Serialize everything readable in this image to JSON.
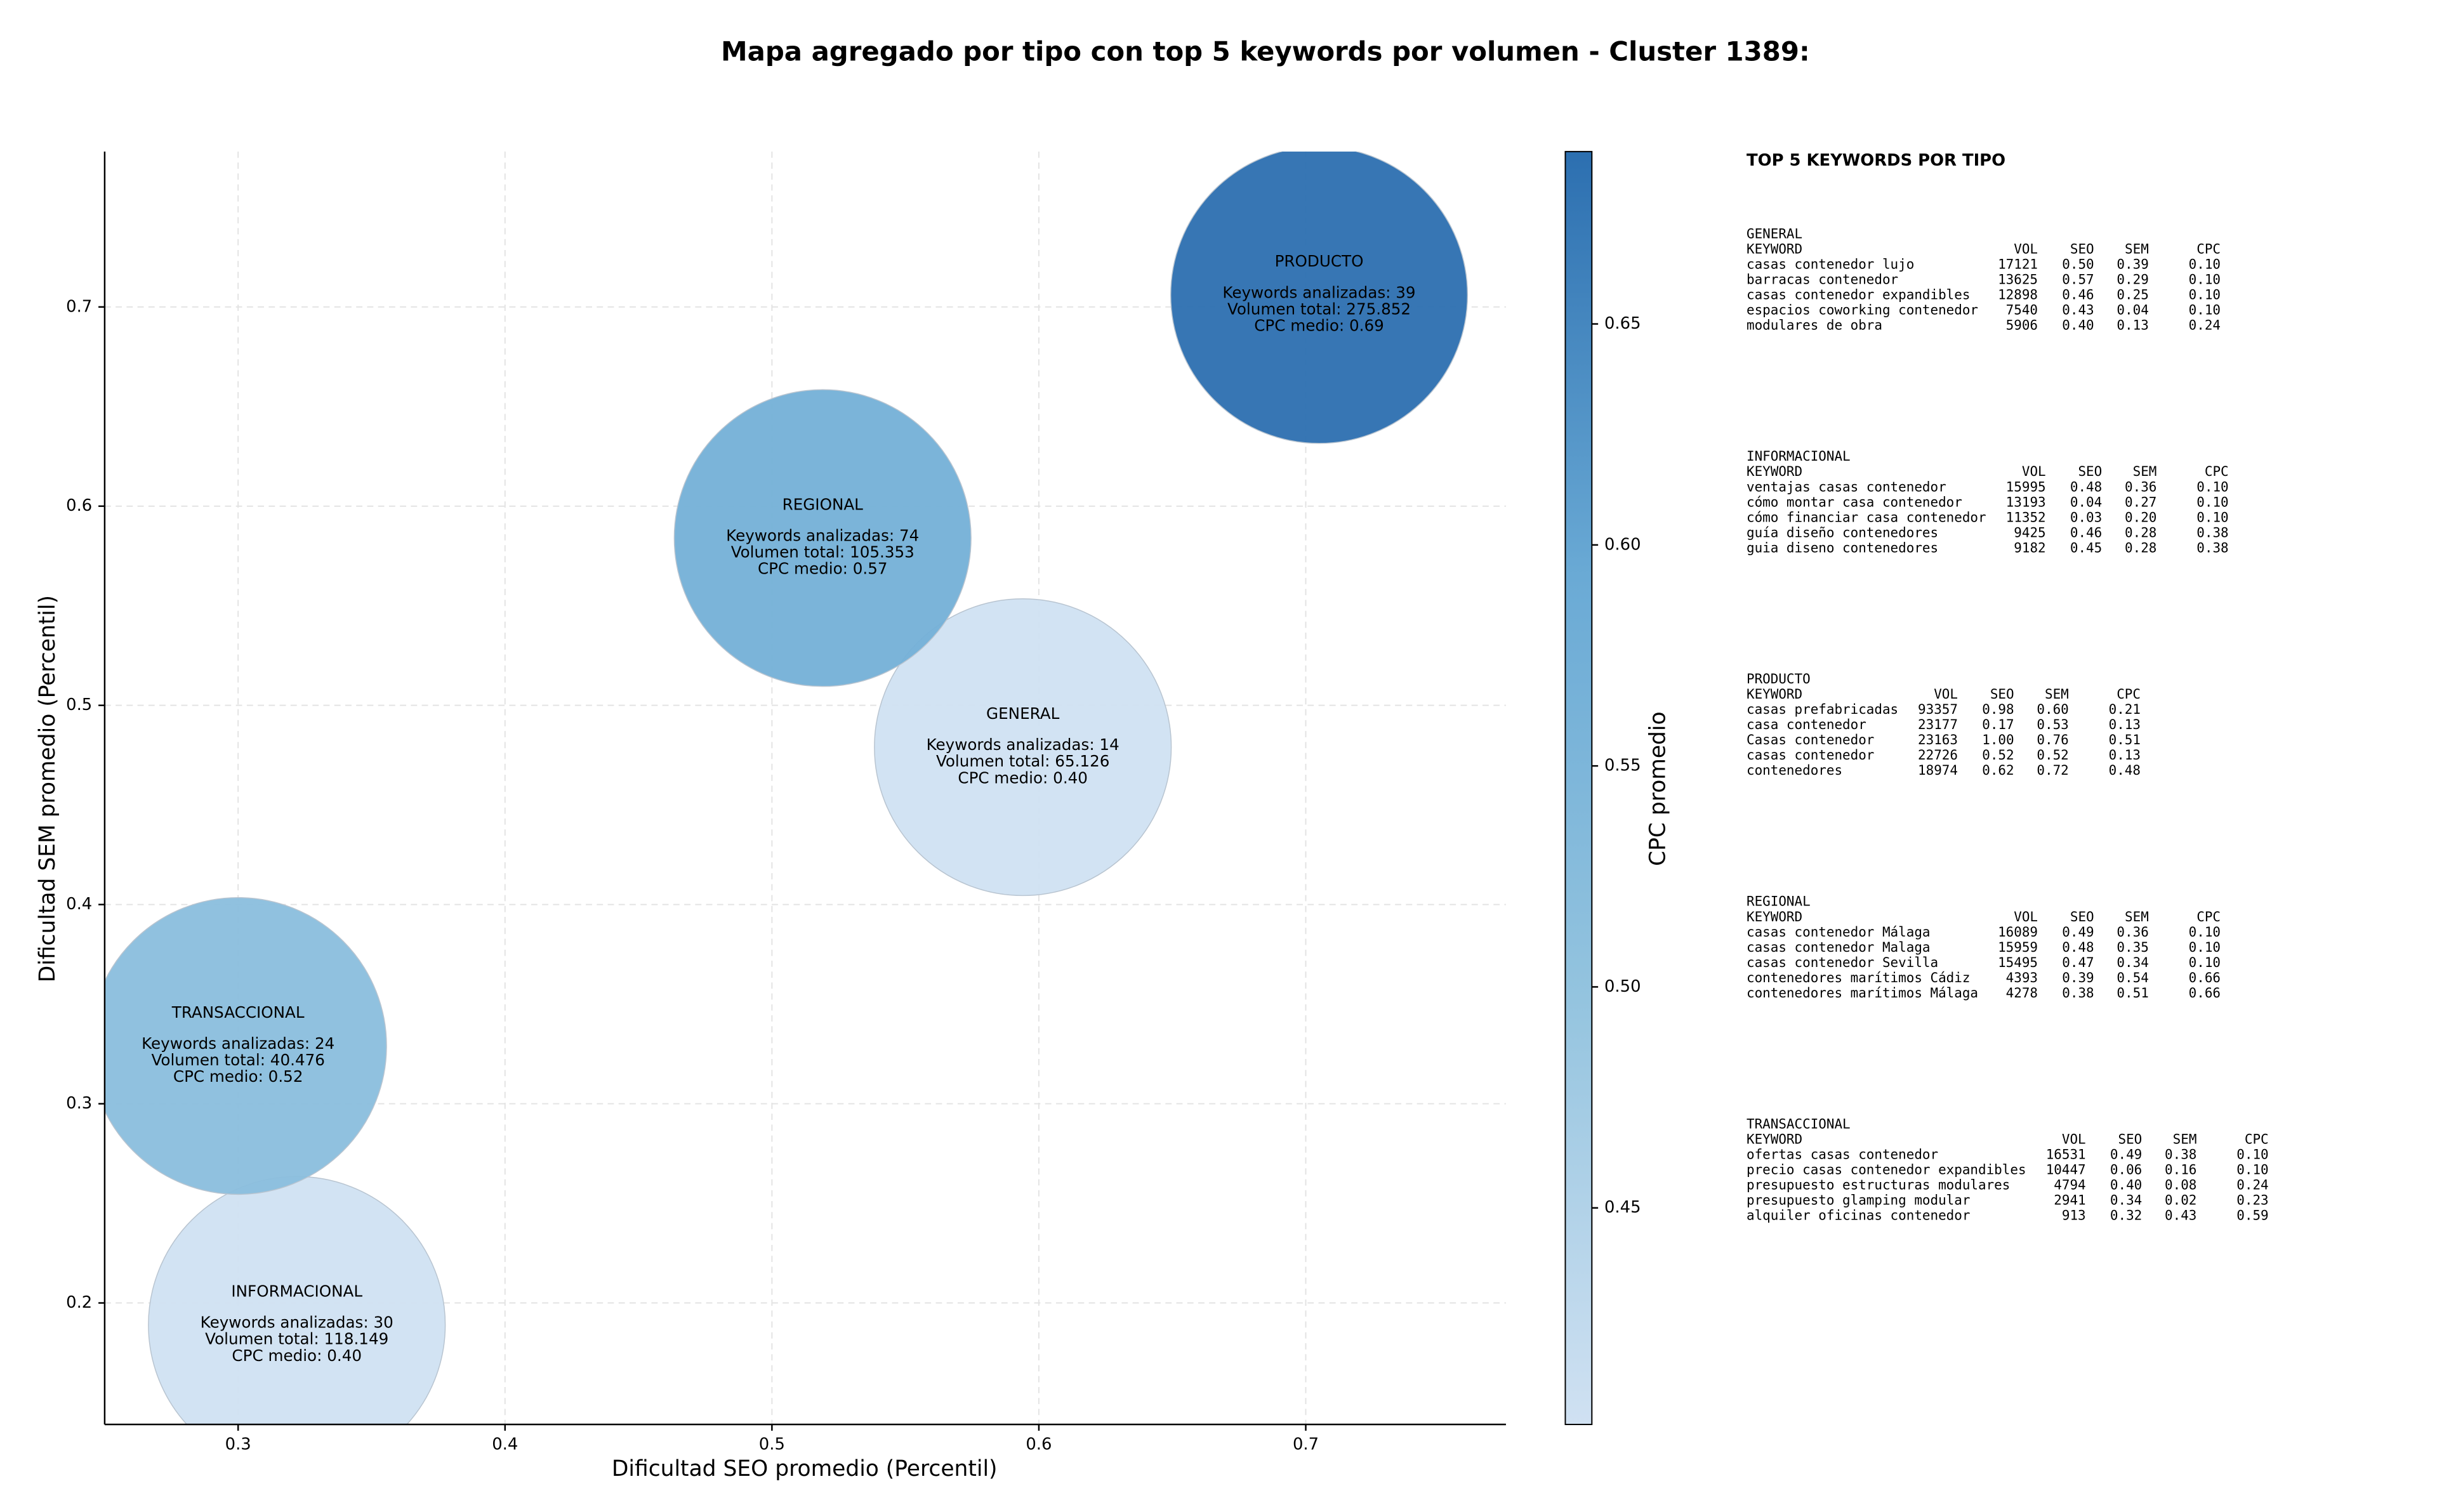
{
  "chart_data": {
    "type": "scatter",
    "title": "Mapa agregado por tipo con top 5 keywords por volumen - Cluster 1389:",
    "xlabel": "Dificultad SEO promedio (Percentil)",
    "ylabel": "Dificultad SEM promedio (Percentil)",
    "categories": [
      "GENERAL",
      "INFORMACIONAL",
      "PRODUCTO",
      "REGIONAL",
      "TRANSACCIONAL"
    ],
    "x": [
      0.594,
      0.322,
      0.705,
      0.519,
      0.3
    ],
    "y": [
      0.479,
      0.189,
      0.706,
      0.584,
      0.329
    ],
    "cpc": [
      0.4,
      0.4,
      0.69,
      0.57,
      0.52
    ],
    "annotations": [
      [
        "Keywords analizadas: 14",
        "Volumen total: 65.126",
        "CPC medio: 0.40"
      ],
      [
        "Keywords analizadas: 30",
        "Volumen total: 118.149",
        "CPC medio: 0.40"
      ],
      [
        "Keywords analizadas: 39",
        "Volumen total: 275.852",
        "CPC medio: 0.69"
      ],
      [
        "Keywords analizadas: 74",
        "Volumen total: 105.353",
        "CPC medio: 0.57"
      ],
      [
        "Keywords analizadas: 24",
        "Volumen total: 40.476",
        "CPC medio: 0.52"
      ]
    ],
    "xlim": [
      0.25,
      0.775
    ],
    "ylim": [
      0.139,
      0.778
    ],
    "xticks": [
      0.3,
      0.4,
      0.5,
      0.6,
      0.7
    ],
    "yticks": [
      0.2,
      0.3,
      0.4,
      0.5,
      0.6,
      0.7
    ],
    "grid": true,
    "colorbar": {
      "label": "CPC promedio",
      "clim": [
        0.401,
        0.689
      ],
      "ticks": [
        0.45,
        {
          "value": 0.5,
          "label": "0.50"
        },
        0.55,
        {
          "value": 0.6,
          "label": "0.60"
        },
        0.65
      ],
      "colormap": [
        "#d0e1f2",
        "#94c4df",
        "#6aaad5",
        "#2c6fb0"
      ]
    }
  },
  "keyword_panel": {
    "title": "TOP 5 KEYWORDS POR TIPO",
    "groups": [
      {
        "name": "GENERAL",
        "header": [
          "KEYWORD",
          "VOL",
          "SEO",
          "SEM",
          "CPC"
        ],
        "rows": [
          [
            "casas contenedor lujo",
            "17121",
            "0.50",
            "0.39",
            "0.10"
          ],
          [
            "barracas contenedor",
            "13625",
            "0.57",
            "0.29",
            "0.10"
          ],
          [
            "casas contenedor expandibles",
            "12898",
            "0.46",
            "0.25",
            "0.10"
          ],
          [
            "espacios coworking contenedor",
            "7540",
            "0.43",
            "0.04",
            "0.10"
          ],
          [
            "modulares de obra",
            "5906",
            "0.40",
            "0.13",
            "0.24"
          ]
        ]
      },
      {
        "name": "INFORMACIONAL",
        "header": [
          "KEYWORD",
          "VOL",
          "SEO",
          "SEM",
          "CPC"
        ],
        "rows": [
          [
            "ventajas casas contenedor",
            "15995",
            "0.48",
            "0.36",
            "0.10"
          ],
          [
            "cómo montar casa contenedor",
            "13193",
            "0.04",
            "0.27",
            "0.10"
          ],
          [
            "cómo financiar casa contenedor",
            "11352",
            "0.03",
            "0.20",
            "0.10"
          ],
          [
            "guía diseño contenedores",
            "9425",
            "0.46",
            "0.28",
            "0.38"
          ],
          [
            "guia diseno contenedores",
            "9182",
            "0.45",
            "0.28",
            "0.38"
          ]
        ]
      },
      {
        "name": "PRODUCTO",
        "header": [
          "KEYWORD",
          "VOL",
          "SEO",
          "SEM",
          "CPC"
        ],
        "rows": [
          [
            "casas prefabricadas",
            "93357",
            "0.98",
            "0.60",
            "0.21"
          ],
          [
            "casa contenedor",
            "23177",
            "0.17",
            "0.53",
            "0.13"
          ],
          [
            "Casas contenedor",
            "23163",
            "1.00",
            "0.76",
            "0.51"
          ],
          [
            "casas contenedor",
            "22726",
            "0.52",
            "0.52",
            "0.13"
          ],
          [
            "contenedores",
            "18974",
            "0.62",
            "0.72",
            "0.48"
          ]
        ]
      },
      {
        "name": "REGIONAL",
        "header": [
          "KEYWORD",
          "VOL",
          "SEO",
          "SEM",
          "CPC"
        ],
        "rows": [
          [
            "casas contenedor Málaga",
            "16089",
            "0.49",
            "0.36",
            "0.10"
          ],
          [
            "casas contenedor Malaga",
            "15959",
            "0.48",
            "0.35",
            "0.10"
          ],
          [
            "casas contenedor Sevilla",
            "15495",
            "0.47",
            "0.34",
            "0.10"
          ],
          [
            "contenedores marítimos Cádiz",
            "4393",
            "0.39",
            "0.54",
            "0.66"
          ],
          [
            "contenedores marítimos Málaga",
            "4278",
            "0.38",
            "0.51",
            "0.66"
          ]
        ]
      },
      {
        "name": "TRANSACCIONAL",
        "header": [
          "KEYWORD",
          "VOL",
          "SEO",
          "SEM",
          "CPC"
        ],
        "rows": [
          [
            "ofertas casas contenedor",
            "16531",
            "0.49",
            "0.38",
            "0.10"
          ],
          [
            "precio casas contenedor expandibles",
            "10447",
            "0.06",
            "0.16",
            "0.10"
          ],
          [
            "presupuesto estructuras modulares",
            "4794",
            "0.40",
            "0.08",
            "0.24"
          ],
          [
            "presupuesto glamping modular",
            "2941",
            "0.34",
            "0.02",
            "0.23"
          ],
          [
            "alquiler oficinas contenedor",
            "913",
            "0.32",
            "0.43",
            "0.59"
          ]
        ]
      }
    ]
  }
}
